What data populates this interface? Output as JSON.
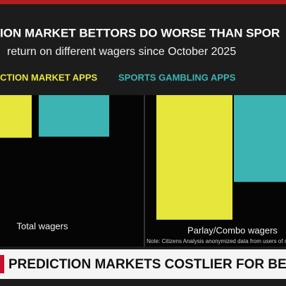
{
  "chart_data": {
    "type": "bar",
    "title": "ION MARKET BETTORS DO WORSE THAN SPOR",
    "subtitle": "return on different wagers since October 2025",
    "categories": [
      "Total wagers",
      "Parlay/Combo wagers"
    ],
    "series": [
      {
        "name": "CTION MARKET APPS",
        "color": "#e6e63c",
        "values": [
          -11.3,
          -33
        ]
      },
      {
        "name": "SPORTS GAMBLING APPS",
        "color": "#3cb4b4",
        "values": [
          -11,
          -23
        ]
      }
    ],
    "ylim": [
      -35,
      0
    ],
    "note": "Note: Citizens Analysis anonymized data from users of sports betting",
    "banner": "PREDICTION MARKETS COSTLIER FOR BETTO"
  }
}
